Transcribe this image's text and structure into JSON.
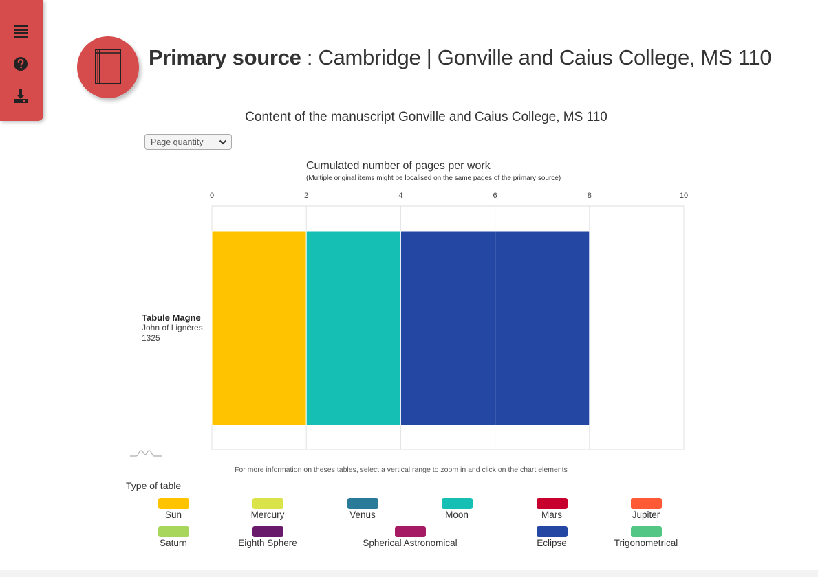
{
  "sidebar": {
    "items": [
      {
        "icon": "list-icon"
      },
      {
        "icon": "help-icon"
      },
      {
        "icon": "download-icon"
      }
    ],
    "color": "#d64b4b"
  },
  "header": {
    "icon": "book-icon",
    "title_bold": "Primary source",
    "title_rest": " : Cambridge | Gonville and Caius College, MS 110"
  },
  "subtitle": "Content of the manuscript Gonville and Caius College, MS 110",
  "selector": {
    "value": "Page quantity"
  },
  "row": {
    "work": "Tabule Magne",
    "author": "John of Lignères",
    "year": "1325"
  },
  "footnote": "For more information on theses tables, select a vertical range to zoom in and click on the chart elements",
  "legend": {
    "title": "Type of table",
    "items": [
      {
        "label": "Sun",
        "color": "#ffc300"
      },
      {
        "label": "Mercury",
        "color": "#dbe34a"
      },
      {
        "label": "Venus",
        "color": "#2a7a9a"
      },
      {
        "label": "Moon",
        "color": "#15bfb4"
      },
      {
        "label": "Mars",
        "color": "#c8002d"
      },
      {
        "label": "Jupiter",
        "color": "#ff5a36"
      },
      {
        "label": "Saturn",
        "color": "#a8d65c"
      },
      {
        "label": "Eighth Sphere",
        "color": "#6a1a6b"
      },
      {
        "label": "Spherical Astronomical",
        "color": "#a61a63"
      },
      {
        "label": "Eclipse",
        "color": "#2447a3"
      },
      {
        "label": "Trigonometrical",
        "color": "#53c686"
      }
    ]
  },
  "chart_data": {
    "type": "bar",
    "orientation": "horizontal",
    "stacked": true,
    "title": "Cumulated number of pages per work",
    "subtitle": "(Multiple original items might be localised on the same pages of the primary source)",
    "categories": [
      "Tabule Magne"
    ],
    "segments": [
      {
        "type": "Sun",
        "start": 0,
        "end": 2,
        "color": "#ffc300"
      },
      {
        "type": "Moon",
        "start": 2,
        "end": 4,
        "color": "#15bfb4"
      },
      {
        "type": "Eclipse",
        "start": 4,
        "end": 6,
        "color": "#2447a3"
      },
      {
        "type": "Eclipse",
        "start": 6,
        "end": 8,
        "color": "#2447a3"
      }
    ],
    "xlim": [
      0,
      10
    ],
    "xticks": [
      "0",
      "2",
      "4",
      "6",
      "8",
      "10"
    ],
    "grid": true,
    "axis_position": "top"
  }
}
